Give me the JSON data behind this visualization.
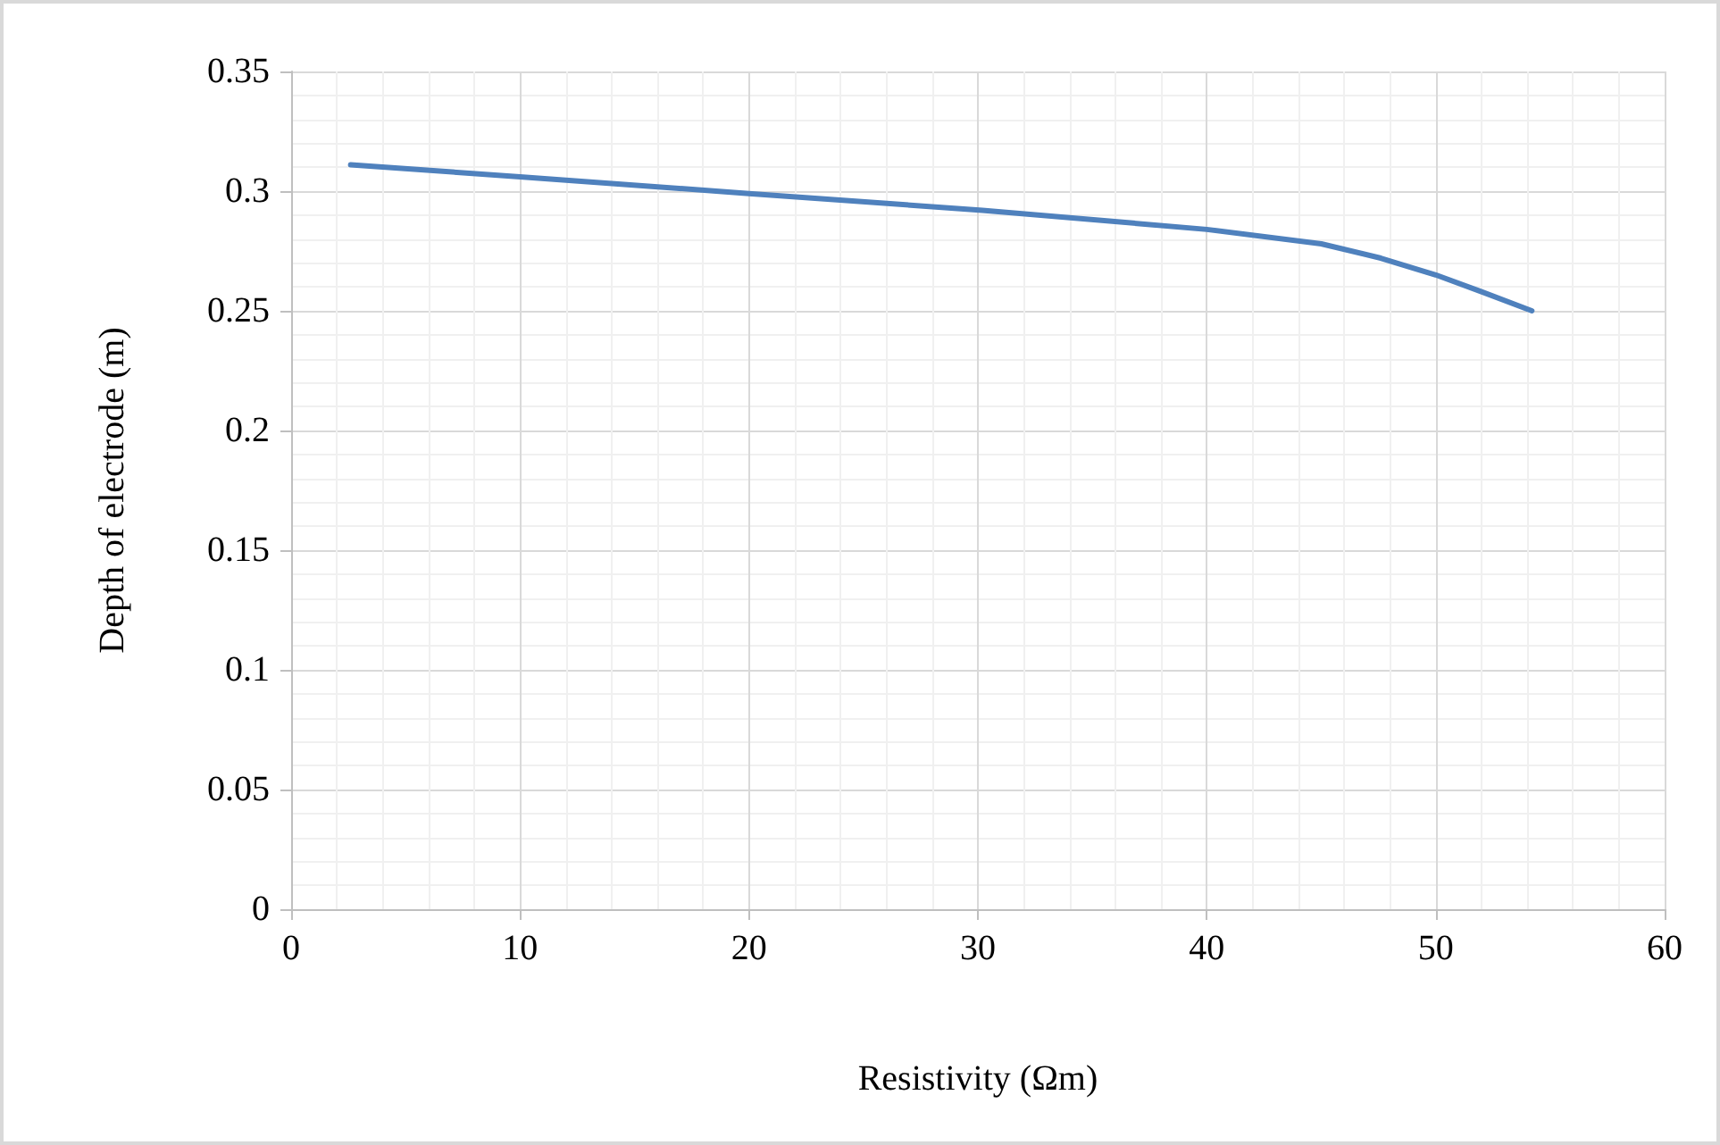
{
  "chart_data": {
    "type": "line",
    "xlabel": "Resistivity (Ωm)",
    "ylabel": "Depth of electrode (m)",
    "x": [
      2.6,
      10,
      20,
      30.2,
      40,
      45,
      47.6,
      50,
      52,
      54.2
    ],
    "series": [
      {
        "color": "#4f81bd",
        "values": [
          0.311,
          0.306,
          0.299,
          0.292,
          0.284,
          0.278,
          0.272,
          0.265,
          0.258,
          0.25
        ]
      }
    ],
    "xlim": [
      0,
      60
    ],
    "xticks": [
      0,
      10,
      20,
      30,
      40,
      50,
      60
    ],
    "ylim": [
      0,
      0.35
    ],
    "yticks": [
      0,
      0.05,
      0.1,
      0.15,
      0.2,
      0.25,
      0.3,
      0.35
    ],
    "grid": true,
    "marker": "none",
    "line_style": "solid"
  }
}
